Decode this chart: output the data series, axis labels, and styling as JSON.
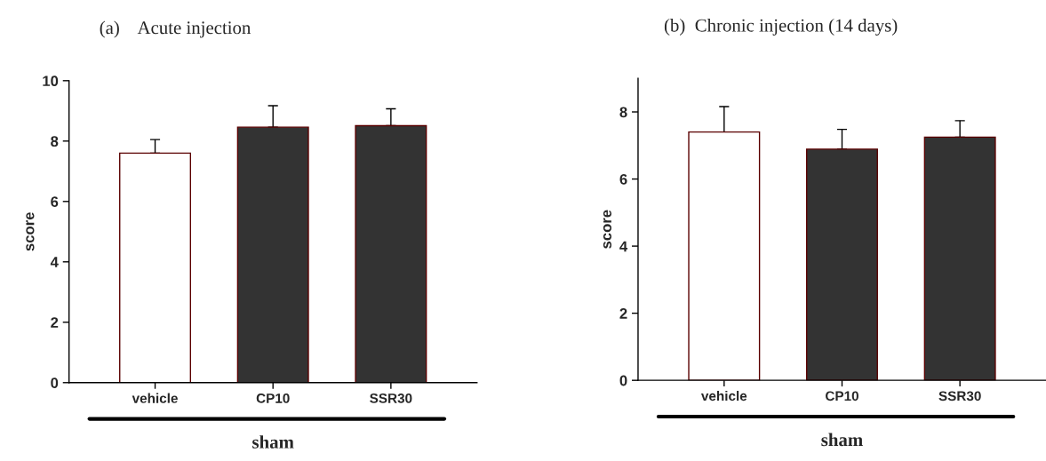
{
  "chart_data": [
    {
      "type": "bar",
      "title": "(a)    Acute injection",
      "ylabel": "score",
      "xlabel": "sham",
      "categories": [
        "vehicle",
        "CP10",
        "SSR30"
      ],
      "values": [
        7.6,
        8.46,
        8.51
      ],
      "colors": [
        "#ffffff",
        "#333333",
        "#333333"
      ],
      "errors": [
        [
          7.6,
          8.05
        ],
        [
          8.46,
          9.17
        ],
        [
          8.51,
          9.07
        ]
      ],
      "ylim": [
        0,
        10
      ],
      "yticks": [
        0,
        2,
        4,
        6,
        8,
        10
      ],
      "grid": false,
      "legend": false
    },
    {
      "type": "bar",
      "title": "(b)  Chronic injection (14 days)",
      "ylabel": "score",
      "xlabel": "sham",
      "categories": [
        "vehicle",
        "CP10",
        "SSR30"
      ],
      "values": [
        7.4,
        6.89,
        7.25
      ],
      "colors": [
        "#ffffff",
        "#333333",
        "#333333"
      ],
      "errors": [
        [
          7.4,
          8.16
        ],
        [
          6.89,
          7.48
        ],
        [
          7.25,
          7.74
        ]
      ],
      "ylim": [
        0,
        9
      ],
      "yticks": [
        0,
        2,
        4,
        6,
        8
      ],
      "grid": false,
      "legend": false
    }
  ]
}
